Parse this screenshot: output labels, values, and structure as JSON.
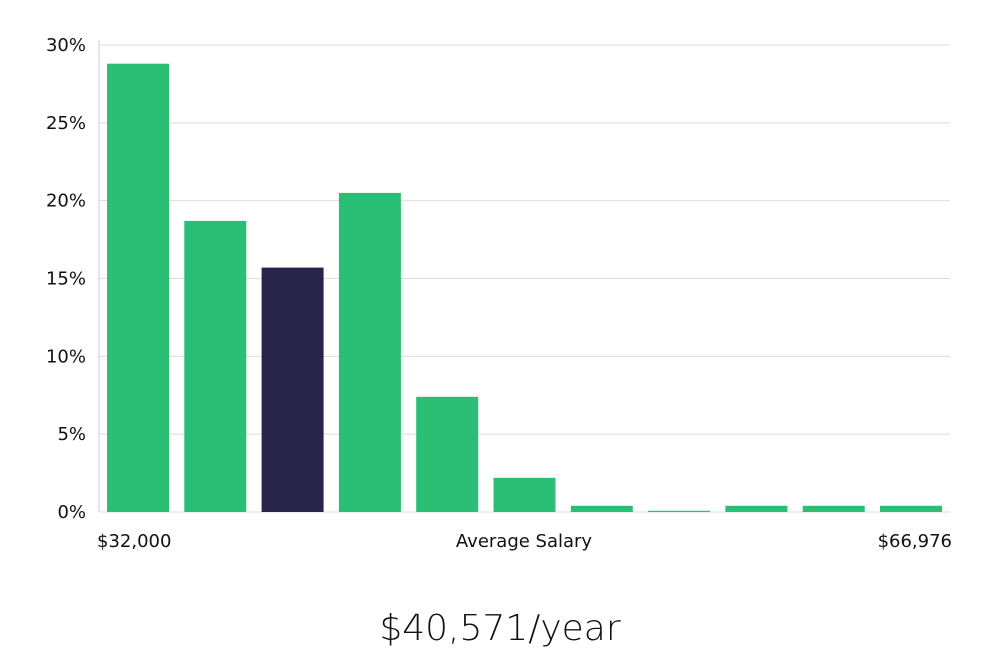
{
  "chart_data": {
    "type": "bar",
    "x_min_label": "$32,000",
    "x_mid_label": "Average Salary",
    "x_max_label": "$66,976",
    "values": [
      28.8,
      18.7,
      15.7,
      20.5,
      7.4,
      2.2,
      0.4,
      0.05,
      0.4,
      0.4,
      0.4
    ],
    "highlight_index": 2,
    "ylim": [
      0,
      30
    ],
    "yticks": [
      "0%",
      "5%",
      "10%",
      "15%",
      "20%",
      "25%",
      "30%"
    ],
    "ytick_values": [
      0,
      5,
      10,
      15,
      20,
      25,
      30
    ],
    "grid": true,
    "colors": {
      "bar": "#2bbf76",
      "highlight": "#29254a"
    }
  },
  "summary": {
    "value": "$40,571/year"
  }
}
